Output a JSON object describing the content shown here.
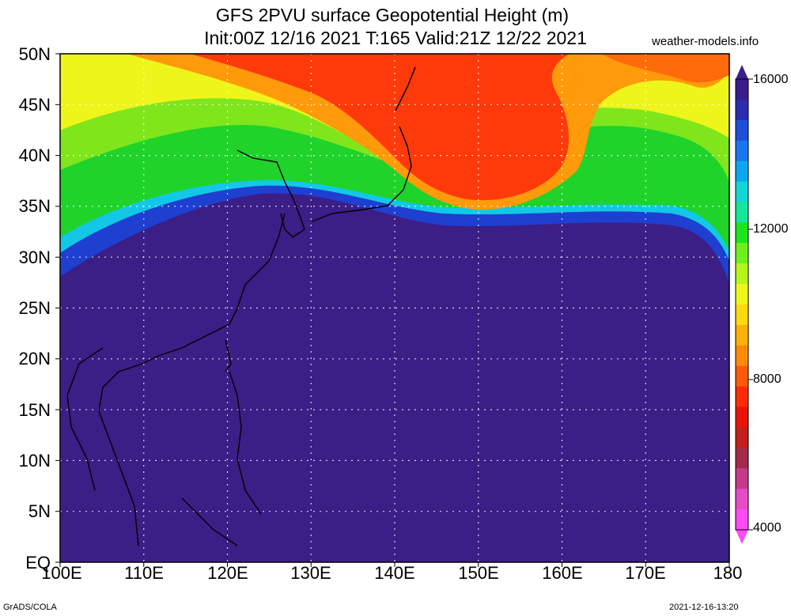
{
  "title_line1": "GFS 2PVU surface Geopotential Height (m)",
  "title_line2": "Init:00Z 12/16 2021 T:165 Valid:21Z 12/22 2021",
  "site": "weather-models.info",
  "lat_labels": [
    "50N",
    "45N",
    "40N",
    "35N",
    "30N",
    "25N",
    "20N",
    "15N",
    "10N",
    "5N",
    "EQ"
  ],
  "lon_labels": [
    "100E",
    "110E",
    "120E",
    "130E",
    "140E",
    "150E",
    "160E",
    "170E",
    "180"
  ],
  "colorbar": {
    "labels": [
      "16000",
      "12000",
      "8000",
      "4000"
    ],
    "colors": [
      "#3a1c8c",
      "#2b2bb0",
      "#1d4fd8",
      "#1976ee",
      "#0aa8f0",
      "#12d6d6",
      "#14e69a",
      "#1be61b",
      "#6ef01c",
      "#b7f51a",
      "#eef51a",
      "#ffd90f",
      "#ffb00a",
      "#ff8a0a",
      "#ff5a0a",
      "#ff2a0a",
      "#e8140a",
      "#c51e1e",
      "#a52a4a",
      "#c53a8a",
      "#e64ac5",
      "#ff4af5"
    ]
  },
  "map": {
    "region": "Western Pacific / East Asia",
    "lon_range": [
      100,
      180
    ],
    "lat_range": [
      0,
      50
    ]
  },
  "footer_left": "GrADS/COLA",
  "footer_right": "2021-12-16-13:20"
}
